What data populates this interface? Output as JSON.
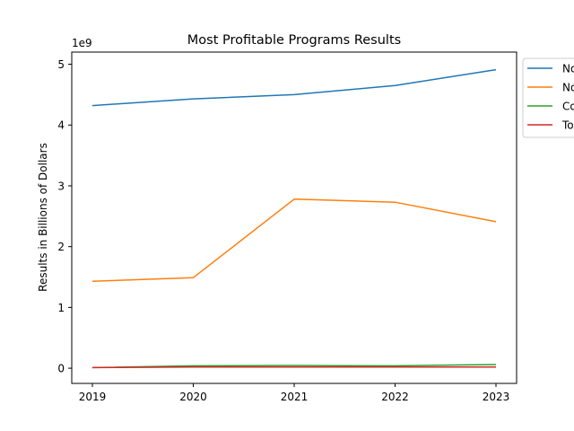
{
  "chart_data": {
    "type": "line",
    "title": "Most Profitable Programs Results",
    "xlabel": "",
    "ylabel": "Results in Billions of Dollars",
    "offset_label": "1e9",
    "x": [
      2019,
      2020,
      2021,
      2022,
      2023
    ],
    "x_tick_labels": [
      "2019",
      "2020",
      "2021",
      "2022",
      "2023"
    ],
    "y_ticks": [
      0,
      1,
      2,
      3,
      4,
      5
    ],
    "y_tick_labels": [
      "0",
      "1",
      "2",
      "3",
      "4",
      "5"
    ],
    "ylim": [
      -0.25,
      5.2
    ],
    "y_unit_multiplier": 1000000000,
    "grid": false,
    "legend_position": "outside-top-right",
    "series": [
      {
        "name": "No",
        "color": "#1f77b4",
        "values": [
          4.32,
          4.43,
          4.5,
          4.65,
          4.91
        ]
      },
      {
        "name": "No",
        "color": "#ff7f0e",
        "values": [
          1.43,
          1.49,
          2.78,
          2.73,
          2.41
        ]
      },
      {
        "name": "Co",
        "color": "#2ca02c",
        "values": [
          0.01,
          0.04,
          0.045,
          0.04,
          0.06
        ]
      },
      {
        "name": "To",
        "color": "#d62728",
        "values": [
          0.01,
          0.02,
          0.02,
          0.02,
          0.02
        ]
      }
    ]
  }
}
